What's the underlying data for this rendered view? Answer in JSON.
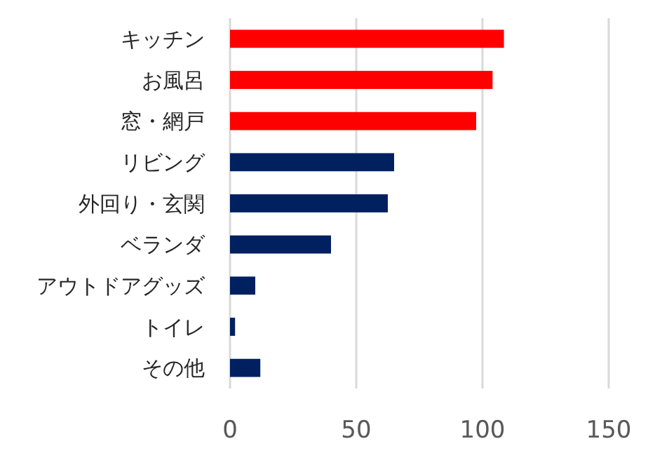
{
  "chart_data": {
    "type": "bar",
    "orientation": "horizontal",
    "categories": [
      "キッチン",
      "お風呂",
      "窓・網戸",
      "リビング",
      "外回り・玄関",
      "ベランダ",
      "アウトドアグッズ",
      "トイレ",
      "その他"
    ],
    "values": [
      108.5,
      104,
      97.5,
      65,
      62.5,
      40,
      10,
      2,
      12
    ],
    "colors": [
      "#ff0000",
      "#ff0000",
      "#ff0000",
      "#002060",
      "#002060",
      "#002060",
      "#002060",
      "#002060",
      "#002060"
    ],
    "xlim": [
      0,
      150
    ],
    "xticks": [
      0,
      50,
      100,
      150
    ],
    "grid": "x"
  }
}
